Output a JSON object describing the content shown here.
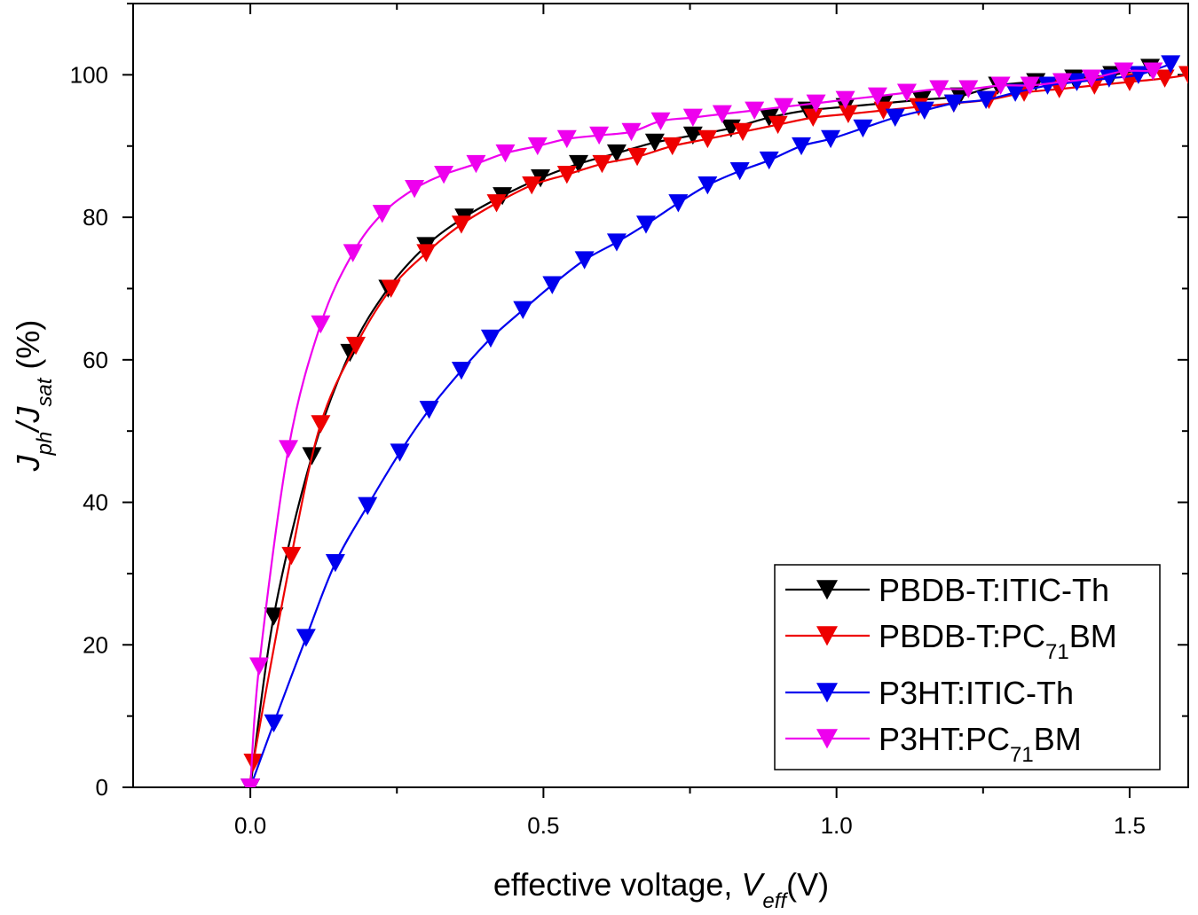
{
  "chart_data": {
    "type": "line",
    "xlabel": {
      "main": "effective voltage, ",
      "var": "V",
      "sub": "eff",
      "unit": "(V)"
    },
    "ylabel": {
      "j1": "J",
      "s1": "ph",
      "slash": "/J",
      "s2": "sat",
      "unit": " (%)"
    },
    "xlim": [
      -0.2,
      1.6
    ],
    "ylim": [
      0,
      110
    ],
    "x_ticks": [
      0.0,
      0.5,
      1.0,
      1.5
    ],
    "x_tick_labels": [
      "0.0",
      "0.5",
      "1.0",
      "1.5"
    ],
    "y_ticks": [
      0,
      20,
      40,
      60,
      80,
      100
    ],
    "y_tick_labels": [
      "0",
      "20",
      "40",
      "60",
      "80",
      "100"
    ],
    "grid": false,
    "legend_position": "bottom-right",
    "marker": "down-triangle",
    "series": [
      {
        "name": "PBDB-T:ITIC-Th",
        "legend": {
          "pre": "PBDB-T:ITIC-Th",
          "sub": "",
          "post": ""
        },
        "color": "#000000",
        "x": [
          0.0,
          0.04,
          0.105,
          0.17,
          0.235,
          0.3,
          0.365,
          0.43,
          0.495,
          0.56,
          0.625,
          0.69,
          0.755,
          0.82,
          0.885,
          0.95,
          1.015,
          1.08,
          1.145,
          1.21,
          1.275,
          1.34,
          1.405,
          1.47,
          1.535
        ],
        "y": [
          0,
          24,
          46.5,
          61,
          70,
          76,
          80,
          83,
          85.5,
          87.5,
          89,
          90.5,
          91.5,
          92.5,
          94,
          95,
          95.5,
          96,
          96.5,
          97,
          98.5,
          99,
          99.5,
          100,
          101
        ]
      },
      {
        "name": "PBDB-T:PC71BM",
        "legend": {
          "pre": "PBDB-T:PC",
          "sub": "71",
          "post": "BM"
        },
        "color": "#ee0000",
        "x": [
          0.0,
          0.005,
          0.07,
          0.12,
          0.18,
          0.24,
          0.3,
          0.36,
          0.42,
          0.48,
          0.54,
          0.6,
          0.66,
          0.72,
          0.78,
          0.84,
          0.9,
          0.96,
          1.02,
          1.08,
          1.14,
          1.2,
          1.26,
          1.32,
          1.38,
          1.44,
          1.5,
          1.56,
          1.6
        ],
        "y": [
          0,
          3.5,
          32.5,
          51,
          62,
          70,
          75,
          79,
          82,
          84.5,
          86,
          87.5,
          88.5,
          90,
          91,
          92,
          93,
          94,
          94.5,
          95,
          95.5,
          96,
          96.5,
          97.5,
          98,
          98.5,
          99,
          99.5,
          100
        ]
      },
      {
        "name": "P3HT:ITIC-Th",
        "legend": {
          "pre": "P3HT:ITIC-Th",
          "sub": "",
          "post": ""
        },
        "color": "#0000ee",
        "x": [
          0.0,
          0.04,
          0.095,
          0.145,
          0.2,
          0.255,
          0.305,
          0.36,
          0.41,
          0.465,
          0.515,
          0.57,
          0.625,
          0.675,
          0.73,
          0.78,
          0.835,
          0.885,
          0.94,
          0.99,
          1.045,
          1.1,
          1.15,
          1.2,
          1.255,
          1.305,
          1.36,
          1.41,
          1.465,
          1.515,
          1.57
        ],
        "y": [
          0,
          9,
          21,
          31.5,
          39.5,
          47,
          53,
          58.5,
          63,
          67,
          70.5,
          74,
          76.5,
          79,
          82,
          84.5,
          86.5,
          88,
          90,
          91,
          92.5,
          94,
          95,
          96,
          96.5,
          97.5,
          98.5,
          99,
          99.5,
          100,
          101.5
        ]
      },
      {
        "name": "P3HT:PC71BM",
        "legend": {
          "pre": "P3HT:PC",
          "sub": "71",
          "post": "BM"
        },
        "color": "#ee00ee",
        "x": [
          0.0,
          0.015,
          0.065,
          0.12,
          0.175,
          0.225,
          0.28,
          0.33,
          0.385,
          0.435,
          0.49,
          0.54,
          0.595,
          0.65,
          0.7,
          0.755,
          0.805,
          0.86,
          0.91,
          0.965,
          1.015,
          1.07,
          1.12,
          1.175,
          1.225,
          1.28,
          1.33,
          1.385,
          1.435,
          1.49,
          1.54
        ],
        "y": [
          0,
          17,
          47.5,
          65,
          75,
          80.5,
          84,
          86,
          87.5,
          89,
          90,
          91,
          91.5,
          92,
          93.5,
          94,
          94.5,
          95,
          95.5,
          96,
          96.5,
          97,
          97.5,
          98,
          98,
          98.5,
          98.5,
          99,
          99.5,
          100.5,
          100.5
        ]
      }
    ]
  }
}
